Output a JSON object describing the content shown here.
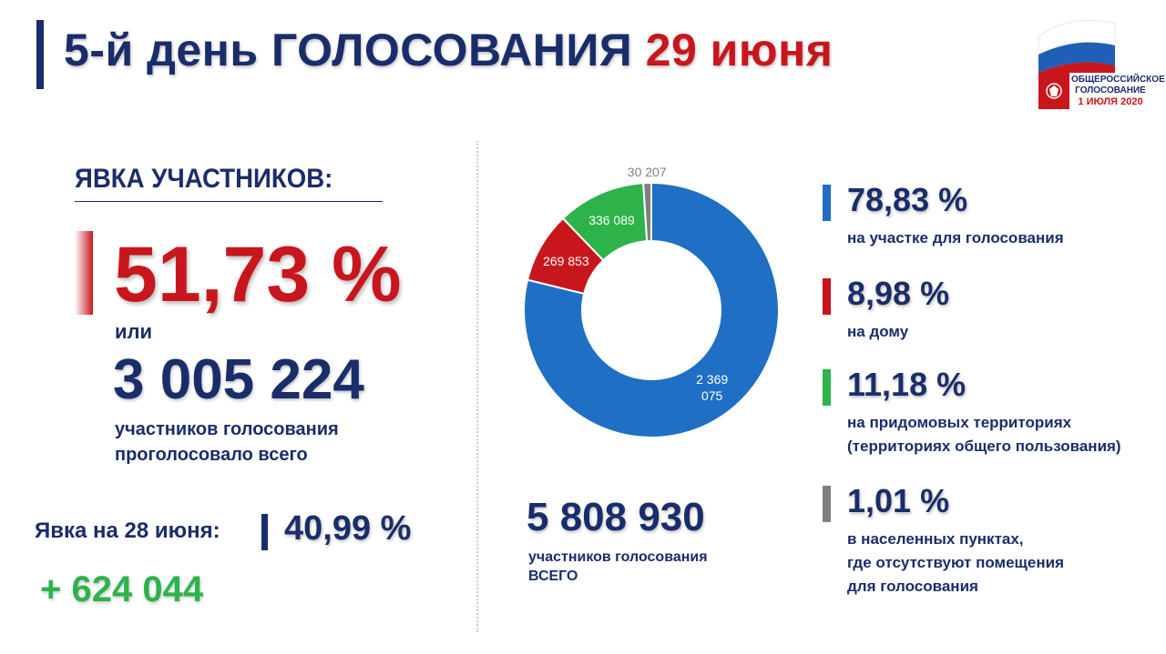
{
  "header": {
    "title_main": "5-й день ГОЛОСОВАНИЯ",
    "title_date": "29 июня"
  },
  "logo": {
    "line1": "ОБЩЕРОССИЙСКОЕ",
    "line2": "ГОЛОСОВАНИЕ",
    "line3": "1 ИЮЛЯ 2020"
  },
  "turnout": {
    "heading": "ЯВКА УЧАСТНИКОВ:",
    "percent": "51,73 %",
    "or": "или",
    "count": "3 005 224",
    "caption_line1": "участников голосования",
    "caption_line2": "проголосовало всего"
  },
  "previous": {
    "label": "Явка на 28 июня:",
    "value": "40,99 %",
    "diff": "+ 624 044"
  },
  "total": {
    "value": "5 808 930",
    "caption_line1": "участников голосования",
    "caption_line2": "ВСЕГО"
  },
  "colors": {
    "navy": "#1a2d6b",
    "red": "#c8161d",
    "blue": "#1f6fc4",
    "green": "#2db34a",
    "gray": "#7f7f7f"
  },
  "chart_data": {
    "type": "pie",
    "donut": true,
    "start": "top, clockwise",
    "slices": [
      {
        "label_line1": "2 369",
        "label_line2": "075",
        "value": 2369075,
        "color": "#1f6fc4"
      },
      {
        "label_line1": "269 853",
        "label_line2": "",
        "value": 269853,
        "color": "#c8161d"
      },
      {
        "label_line1": "336 089",
        "label_line2": "",
        "value": 336089,
        "color": "#2db34a"
      },
      {
        "label_line1": "30 207",
        "label_line2": "",
        "value": 30207,
        "color": "#7f7f7f"
      }
    ]
  },
  "legend": [
    {
      "percent": "78,83 %",
      "line1": "на участке для голосования",
      "line2": "",
      "line3": "",
      "color": "#1f6fc4"
    },
    {
      "percent": "8,98 %",
      "line1": "на дому",
      "line2": "",
      "line3": "",
      "color": "#c8161d"
    },
    {
      "percent": "11,18 %",
      "line1": "на придомовых территориях",
      "line2": "(территориях общего пользования)",
      "line3": "",
      "color": "#2db34a"
    },
    {
      "percent": "1,01 %",
      "line1": "в населенных пунктах,",
      "line2": "где отсутствуют помещения",
      "line3": "для голосования",
      "color": "#7f7f7f"
    }
  ]
}
